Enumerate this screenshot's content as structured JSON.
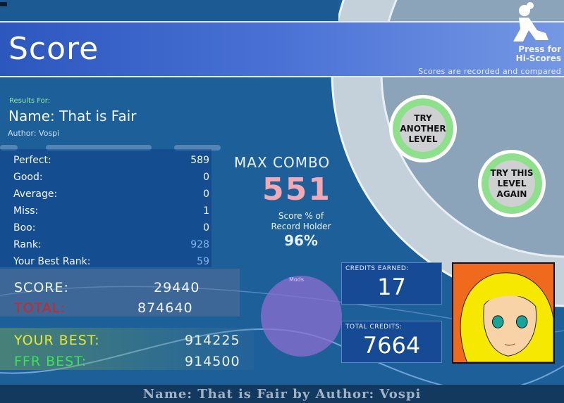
{
  "header": {
    "title": "Score",
    "hiscores_label": "Press for Hi-Scores",
    "hiscores_line1": "Press for",
    "hiscores_line2": "Hi-Scores",
    "recorded_note": "Scores are recorded and compared"
  },
  "song": {
    "results_for": "Results For:",
    "name": "Name: That is Fair",
    "author": "Author: Vospi"
  },
  "stats": [
    {
      "label": "Perfect:",
      "value": "589"
    },
    {
      "label": "Good:",
      "value": "0"
    },
    {
      "label": "Average:",
      "value": "0"
    },
    {
      "label": "Miss:",
      "value": "1"
    },
    {
      "label": "Boo:",
      "value": "0"
    },
    {
      "label": "Rank:",
      "value": "928"
    },
    {
      "label": "Your Best Rank:",
      "value": "59"
    }
  ],
  "combo": {
    "label": "MAX COMBO",
    "value": "551",
    "pct_label_1": "Score % of",
    "pct_label_2": "Record Holder",
    "pct_value": "96%"
  },
  "scores": {
    "score_label": "SCORE:",
    "score_value": "29440",
    "total_label": "TOTAL:",
    "total_value": "874640",
    "your_best_label": "YOUR BEST:",
    "your_best_value": "914225",
    "ffr_best_label": "FFR BEST:",
    "ffr_best_value": "914500"
  },
  "mods": {
    "label": "Mods"
  },
  "credits": {
    "earned_label": "CREDITS EARNED:",
    "earned_value": "17",
    "total_label": "TOTAL CREDITS:",
    "total_value": "7664"
  },
  "buttons": {
    "another_1": "TRY",
    "another_2": "ANOTHER",
    "another_3": "LEVEL",
    "again_1": "TRY THIS",
    "again_2": "LEVEL",
    "again_3": "AGAIN"
  },
  "footer": {
    "text": "Name: That is Fair by Author: Vospi"
  },
  "colors": {
    "background": "#1d5f99",
    "header": "#4a72d6",
    "score_label": "#f0f4ff",
    "total_label": "#e0201a",
    "your_best_label": "#e8e82a",
    "ffr_best_label": "#3ee05a",
    "button_ring": "#8fe08c"
  }
}
